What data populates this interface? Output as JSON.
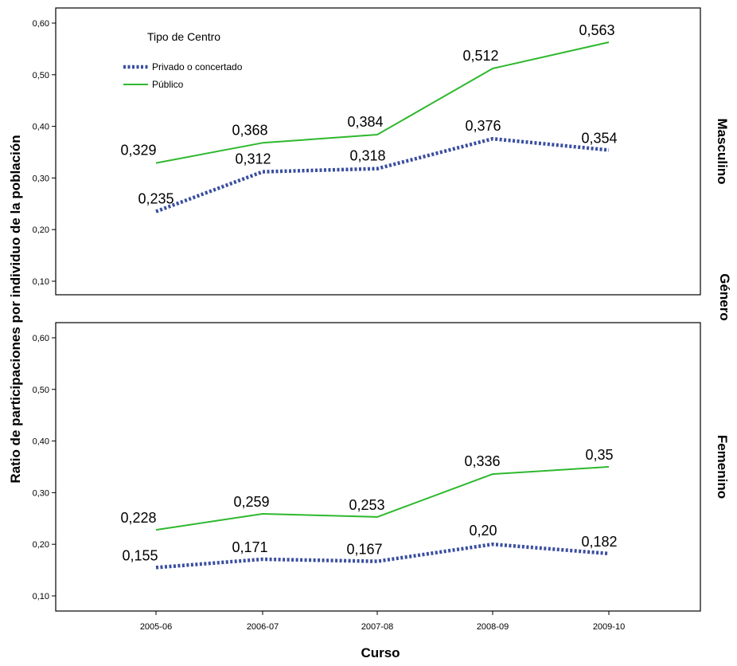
{
  "chart_data": {
    "type": "line",
    "x_label": "Curso",
    "y_label": "Ratio de participaciones por individuo de la población",
    "row_facet_label": "Género",
    "categories": [
      "2005-06",
      "2006-07",
      "2007-08",
      "2008-09",
      "2009-10"
    ],
    "ylim": [
      0.1,
      0.62
    ],
    "y_ticks": [
      "0,10",
      "0,20",
      "0,30",
      "0,40",
      "0,50",
      "0,60"
    ],
    "y_tick_values": [
      0.1,
      0.2,
      0.3,
      0.4,
      0.5,
      0.6
    ],
    "legend": {
      "title": "Tipo de Centro",
      "placement": "top-left",
      "items": [
        {
          "label": "Privado o concertado",
          "color": "#3a4ea0",
          "style": "dotted"
        },
        {
          "label": "Público",
          "color": "#2eb82e",
          "style": "solid"
        }
      ]
    },
    "panels": [
      {
        "facet": "Masculino",
        "series": [
          {
            "name": "Privado o concertado",
            "values": [
              0.235,
              0.312,
              0.318,
              0.376,
              0.354
            ],
            "value_labels": [
              "0,235",
              "0,312",
              "0,318",
              "0,376",
              "0,354"
            ]
          },
          {
            "name": "Público",
            "values": [
              0.329,
              0.368,
              0.384,
              0.512,
              0.563
            ],
            "value_labels": [
              "0,329",
              "0,368",
              "0,384",
              "0,512",
              "0,563"
            ]
          }
        ]
      },
      {
        "facet": "Femenino",
        "series": [
          {
            "name": "Privado o concertado",
            "values": [
              0.155,
              0.171,
              0.167,
              0.2,
              0.182
            ],
            "value_labels": [
              "0,155",
              "0,171",
              "0,167",
              "0,20",
              "0,182"
            ]
          },
          {
            "name": "Público",
            "values": [
              0.228,
              0.259,
              0.253,
              0.336,
              0.35
            ],
            "value_labels": [
              "0,228",
              "0,259",
              "0,253",
              "0,336",
              "0,35"
            ]
          }
        ]
      }
    ]
  }
}
